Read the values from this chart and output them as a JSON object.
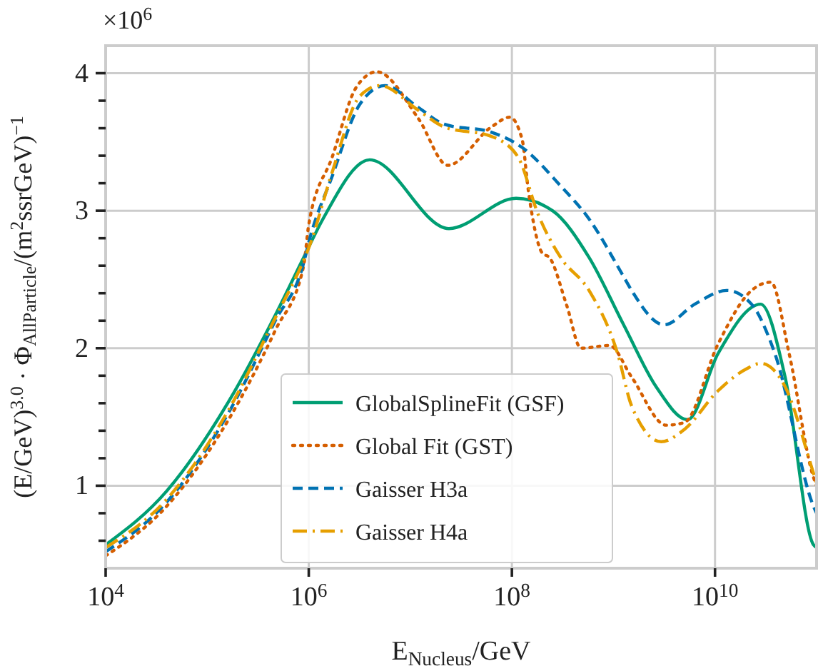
{
  "chart_data": {
    "type": "line",
    "xlabel": "E$_{Nucleus}$/GeV",
    "ylabel": "(E/GeV)$^{3.0}$ · Φ$_{AllParticle}$/(m$^{2}$ssrGeV)$^{−1}$",
    "annotations": [
      "×10$^{6}$"
    ],
    "log": "x",
    "xlim": [
      10000.0,
      100000000000.0
    ],
    "xticks": [
      {
        "value": 10000.0,
        "label": "10$^{4}$"
      },
      {
        "value": 1000000.0,
        "label": "10$^{6}$"
      },
      {
        "value": 100000000.0,
        "label": "10$^{8}$"
      },
      {
        "value": 10000000000.0,
        "label": "10$^{10}$"
      }
    ],
    "ylim": [
      0.4,
      4.2
    ],
    "yticks": [
      {
        "value": 0.6,
        "label": null
      },
      {
        "value": 0.8,
        "label": null
      },
      1,
      {
        "value": 1.2,
        "label": null
      },
      {
        "value": 1.4,
        "label": null
      },
      {
        "value": 1.6,
        "label": null
      },
      {
        "value": 1.8,
        "label": null
      },
      2,
      {
        "value": 2.2,
        "label": null
      },
      {
        "value": 2.4,
        "label": null
      },
      {
        "value": 2.6,
        "label": null
      },
      {
        "value": 2.8,
        "label": null
      },
      3,
      {
        "value": 3.2,
        "label": null
      },
      {
        "value": 3.4,
        "label": null
      },
      {
        "value": 3.6,
        "label": null
      },
      {
        "value": 3.8,
        "label": null
      },
      4
    ],
    "grid": true,
    "legend": "bottom",
    "series": [
      {
        "name": "GlobalSplineFit (GSF)",
        "color": "#009e73",
        "line_style": "solid",
        "x": [
          10000.0,
          39800.0,
          162000.0,
          468000.0,
          891000.0,
          1380000.0,
          3980000.0,
          24000000.0,
          110000000.0,
          251000000.0,
          575000000.0,
          1260000000.0,
          2630000000.0,
          5370000000.0,
          10700000000.0,
          28200000000.0,
          49000000000.0,
          93300000000.0,
          100000000000.0
        ],
        "values": [
          0.57,
          0.96,
          1.61,
          2.24,
          2.66,
          2.94,
          3.37,
          2.87,
          3.09,
          3.0,
          2.66,
          2.17,
          1.72,
          1.48,
          1.96,
          2.32,
          1.79,
          0.57,
          0.55
        ]
      },
      {
        "name": "Global Fit (GST)",
        "color": "#d55e00",
        "line_style": "dotted",
        "x": [
          10000.0,
          39800.0,
          162000.0,
          468000.0,
          891000.0,
          1000000.0,
          1700000.0,
          2950000.0,
          4680000.0,
          12000000.0,
          23400000.0,
          63100000.0,
          95500000.0,
          126000000.0,
          145000000.0,
          200000000.0,
          234000000.0,
          347000000.0,
          479000000.0,
          912000000.0,
          1510000000.0,
          3310000000.0,
          5010000000.0,
          10700000000.0,
          22900000000.0,
          35500000000.0,
          53700000000.0,
          93300000000.0,
          100000000000.0
        ],
        "values": [
          0.49,
          0.85,
          1.48,
          2.13,
          2.6,
          2.9,
          3.39,
          3.9,
          4.01,
          3.67,
          3.33,
          3.61,
          3.68,
          3.52,
          3.15,
          2.69,
          2.66,
          2.31,
          2.0,
          2.02,
          1.79,
          1.44,
          1.46,
          2.03,
          2.42,
          2.48,
          1.96,
          1.06,
          1.0
        ]
      },
      {
        "name": "Gaisser H3a",
        "color": "#0072b2",
        "line_style": "dashed",
        "x": [
          10000.0,
          39800.0,
          162000.0,
          468000.0,
          891000.0,
          1000000.0,
          1700000.0,
          3160000.0,
          5620000.0,
          12000000.0,
          21400000.0,
          63100000.0,
          126000000.0,
          302000000.0,
          575000000.0,
          1260000000.0,
          1510000000.0,
          3160000000.0,
          6310000000.0,
          13200000000.0,
          22900000000.0,
          38900000000.0,
          93300000000.0,
          100000000000.0
        ],
        "values": [
          0.52,
          0.88,
          1.53,
          2.2,
          2.62,
          2.77,
          3.25,
          3.77,
          3.91,
          3.75,
          3.63,
          3.57,
          3.46,
          3.18,
          2.94,
          2.52,
          2.42,
          2.17,
          2.32,
          2.42,
          2.32,
          1.96,
          0.85,
          0.8
        ]
      },
      {
        "name": "Gaisser H4a",
        "color": "#e69f00",
        "line_style": "dashdot",
        "x": [
          10000.0,
          39800.0,
          162000.0,
          468000.0,
          891000.0,
          1000000.0,
          1700000.0,
          3160000.0,
          5010000.0,
          12000000.0,
          21400000.0,
          63100000.0,
          115000000.0,
          182000000.0,
          302000000.0,
          575000000.0,
          1100000000.0,
          1510000000.0,
          2950000000.0,
          5010000000.0,
          10700000000.0,
          20400000000.0,
          28200000000.0,
          49000000000.0,
          93300000000.0,
          100000000000.0
        ],
        "values": [
          0.55,
          0.9,
          1.55,
          2.22,
          2.64,
          2.73,
          3.28,
          3.83,
          3.91,
          3.73,
          3.61,
          3.54,
          3.39,
          2.97,
          2.66,
          2.42,
          1.96,
          1.58,
          1.32,
          1.41,
          1.69,
          1.85,
          1.89,
          1.72,
          1.09,
          1.02
        ]
      }
    ]
  }
}
